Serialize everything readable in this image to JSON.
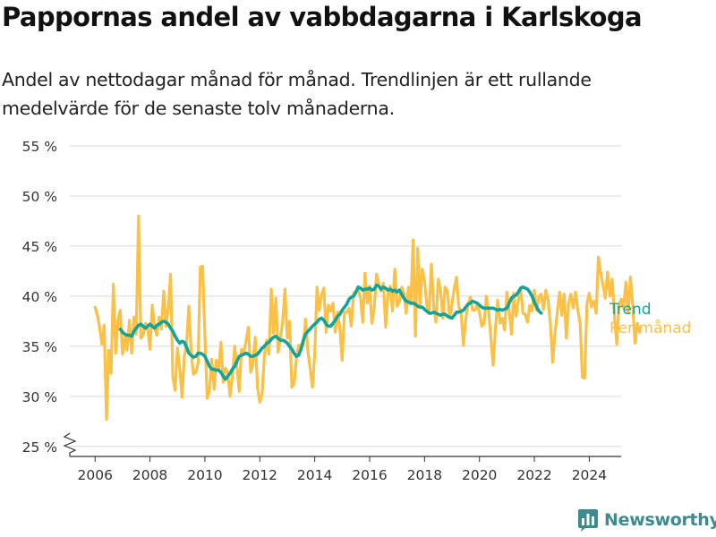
{
  "chart_data": {
    "type": "line",
    "title": "Pappornas andel av vabbdagarna i Karlskoga",
    "subtitle": "Andel av nettodagar månad för månad. Trendlinjen är ett rullande medelvärde för de senaste tolv månaderna.",
    "xlabel": "",
    "ylabel": "",
    "x_ticks": [
      "2006",
      "2008",
      "2010",
      "2012",
      "2014",
      "2016",
      "2018",
      "2020",
      "2022",
      "2024"
    ],
    "y_ticks": [
      "25 %",
      "30 %",
      "35 %",
      "40 %",
      "45 %",
      "50 %",
      "55 %"
    ],
    "xlim": [
      2005.08,
      2025.16
    ],
    "ylim": [
      24,
      55
    ],
    "grid": true,
    "legend": "right, at line ends",
    "series": [
      {
        "name": "Per månad",
        "color": "#fbc146",
        "x_start": 2006.0,
        "x_step": 0.08333,
        "values": [
          38.9,
          38.1,
          36.9,
          35.2,
          37.1,
          27.7,
          34.6,
          32.3,
          41.2,
          34.3,
          37.6,
          38.6,
          34.2,
          35.9,
          34.6,
          37.6,
          34.3,
          37.9,
          36.2,
          48.0,
          35.8,
          36.1,
          37.3,
          36.8,
          34.7,
          39.1,
          36.9,
          36.1,
          37.9,
          36.7,
          40.5,
          37.0,
          38.8,
          42.2,
          31.9,
          30.6,
          34.8,
          32.8,
          29.9,
          33.9,
          35.3,
          39.0,
          34.4,
          32.2,
          32.4,
          33.3,
          42.9,
          43.0,
          36.1,
          29.8,
          30.5,
          33.7,
          30.7,
          33.6,
          32.6,
          35.4,
          31.4,
          32.8,
          32.4,
          30.0,
          31.9,
          35.0,
          33.0,
          30.5,
          34.7,
          34.4,
          35.5,
          36.9,
          32.4,
          33.2,
          35.9,
          30.9,
          29.4,
          30.2,
          34.1,
          35.6,
          34.2,
          40.7,
          36.3,
          39.8,
          34.4,
          35.8,
          37.5,
          40.7,
          35.8,
          37.5,
          30.9,
          31.3,
          33.8,
          35.1,
          35.1,
          35.1,
          37.7,
          34.5,
          32.8,
          30.9,
          34.2,
          40.9,
          38.6,
          40.1,
          40.8,
          36.4,
          39.1,
          38.5,
          39.3,
          36.4,
          38.4,
          36.8,
          33.6,
          38.4,
          38.4,
          38.8,
          37.0,
          40.3,
          40.5,
          40.7,
          39.8,
          37.4,
          42.3,
          39.3,
          41.0,
          37.3,
          38.8,
          42.2,
          41.2,
          40.5,
          41.3,
          36.9,
          40.1,
          41.0,
          38.5,
          42.7,
          39.0,
          39.4,
          40.9,
          40.3,
          38.3,
          40.9,
          39.2,
          45.6,
          36.0,
          44.8,
          39.1,
          42.7,
          41.6,
          39.1,
          38.5,
          43.2,
          38.9,
          37.4,
          41.7,
          40.6,
          37.8,
          40.9,
          40.5,
          37.8,
          39.2,
          40.8,
          41.9,
          38.9,
          38.3,
          35.1,
          37.7,
          39.1,
          39.9,
          38.6,
          38.6,
          39.1,
          38.4,
          37.0,
          37.2,
          40.0,
          38.6,
          35.8,
          33.1,
          36.9,
          39.6,
          37.3,
          37.8,
          36.6,
          40.4,
          38.5,
          36.2,
          40.3,
          38.0,
          39.5,
          40.8,
          38.3,
          38.2,
          37.4,
          39.1,
          38.5,
          40.6,
          38.6,
          40.0,
          40.2,
          38.7,
          40.6,
          39.6,
          37.3,
          33.4,
          36.2,
          38.3,
          40.4,
          38.1,
          40.2,
          35.8,
          39.3,
          40.2,
          38.8,
          40.4,
          38.6,
          37.3,
          31.9,
          31.8,
          39.2,
          40.3,
          38.9,
          39.5,
          38.3,
          43.9,
          42.3,
          41.1,
          39.8,
          42.4,
          40.0,
          41.7,
          38.1,
          35.2,
          39.2,
          39.7,
          38.8,
          41.4,
          38.3,
          41.9,
          39.0,
          35.3,
          37.3,
          36.4
        ]
      },
      {
        "name": "Trend",
        "color": "#13a39a",
        "x_start": 2006.917,
        "x_step": 0.08333,
        "values": [
          36.7,
          36.4,
          36.2,
          36.1,
          36.1,
          36.0,
          36.5,
          36.8,
          37.1,
          37.2,
          37.0,
          36.8,
          37.0,
          37.2,
          37.0,
          36.8,
          37.1,
          37.2,
          37.4,
          37.5,
          37.4,
          37.2,
          36.8,
          36.5,
          36.0,
          35.6,
          35.3,
          35.5,
          35.4,
          34.9,
          34.3,
          34.1,
          33.9,
          34.0,
          34.3,
          34.3,
          34.2,
          34.0,
          33.5,
          33.0,
          32.7,
          32.7,
          32.6,
          32.6,
          32.4,
          32.0,
          31.7,
          32.0,
          32.3,
          32.7,
          33.0,
          33.5,
          34.0,
          34.1,
          34.2,
          34.3,
          34.2,
          34.0,
          34.0,
          34.1,
          34.2,
          34.5,
          34.8,
          35.0,
          35.3,
          35.4,
          35.7,
          35.9,
          36.0,
          35.8,
          35.6,
          35.6,
          35.5,
          35.3,
          35.0,
          34.7,
          34.3,
          34.0,
          34.1,
          34.7,
          35.6,
          36.2,
          36.5,
          36.7,
          37.0,
          37.2,
          37.4,
          37.7,
          37.8,
          37.6,
          37.2,
          37.0,
          37.0,
          37.3,
          37.6,
          38.0,
          38.2,
          38.6,
          38.9,
          39.2,
          39.7,
          39.9,
          40.0,
          40.4,
          40.9,
          40.8,
          40.6,
          40.7,
          40.7,
          40.8,
          40.6,
          40.7,
          41.1,
          41.0,
          40.7,
          40.9,
          40.8,
          40.6,
          40.7,
          40.5,
          40.6,
          40.4,
          40.6,
          40.2,
          39.8,
          39.5,
          39.4,
          39.3,
          39.3,
          39.2,
          39.0,
          38.9,
          38.9,
          38.7,
          38.5,
          38.3,
          38.3,
          38.4,
          38.3,
          38.2,
          38.1,
          38.2,
          38.2,
          38.0,
          37.9,
          37.8,
          38.1,
          38.4,
          38.4,
          38.5,
          38.6,
          38.9,
          39.2,
          39.3,
          39.5,
          39.4,
          39.3,
          39.1,
          38.9,
          38.8,
          38.8,
          38.8,
          38.8,
          38.8,
          38.7,
          38.6,
          38.7,
          38.6,
          38.7,
          38.8,
          39.3,
          39.8,
          40.0,
          40.1,
          40.4,
          40.8,
          40.9,
          40.8,
          40.7,
          40.4,
          40.0,
          39.4,
          38.9,
          38.5,
          38.3
        ]
      }
    ]
  },
  "brand": {
    "name": "Newsworthy",
    "icon": "bar-chart-logo-icon",
    "color": "#3d8b8f"
  }
}
